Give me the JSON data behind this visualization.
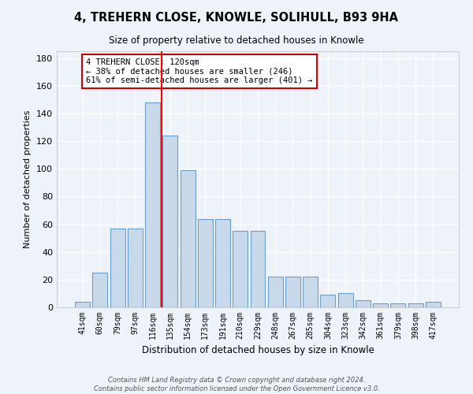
{
  "title": "4, TREHERN CLOSE, KNOWLE, SOLIHULL, B93 9HA",
  "subtitle": "Size of property relative to detached houses in Knowle",
  "xlabel": "Distribution of detached houses by size in Knowle",
  "ylabel": "Number of detached properties",
  "categories": [
    "41sqm",
    "60sqm",
    "79sqm",
    "97sqm",
    "116sqm",
    "135sqm",
    "154sqm",
    "173sqm",
    "191sqm",
    "210sqm",
    "229sqm",
    "248sqm",
    "267sqm",
    "285sqm",
    "304sqm",
    "323sqm",
    "342sqm",
    "361sqm",
    "379sqm",
    "398sqm",
    "417sqm"
  ],
  "values": [
    4,
    25,
    57,
    57,
    148,
    124,
    99,
    64,
    64,
    55,
    55,
    22,
    22,
    22,
    9,
    10,
    5,
    3,
    3,
    3,
    4
  ],
  "bar_color": "#c9d9ec",
  "bar_edgecolor": "#6b9ec8",
  "background_color": "#eef2f9",
  "grid_color": "#ffffff",
  "red_line_x": 4.5,
  "annotation_text": "4 TREHERN CLOSE: 120sqm\n← 38% of detached houses are smaller (246)\n61% of semi-detached houses are larger (401) →",
  "annotation_box_color": "#ffffff",
  "annotation_box_edgecolor": "#cc0000",
  "footer": "Contains HM Land Registry data © Crown copyright and database right 2024.\nContains public sector information licensed under the Open Government Licence v3.0.",
  "ylim": [
    0,
    185
  ],
  "yticks": [
    0,
    20,
    40,
    60,
    80,
    100,
    120,
    140,
    160,
    180
  ]
}
